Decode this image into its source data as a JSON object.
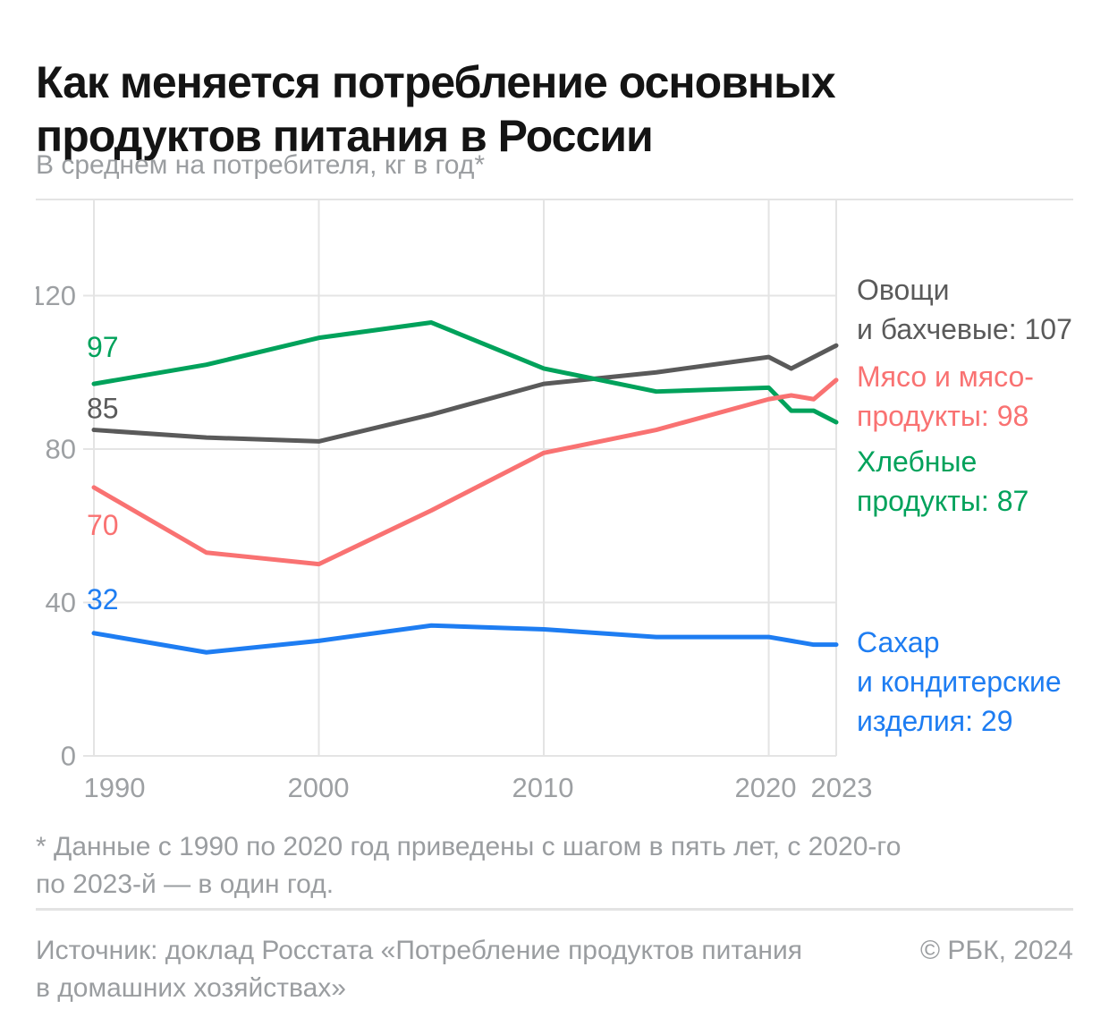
{
  "page": {
    "title": "Как меняется потребление основных продуктов питания в России",
    "subtitle": "В среднем на потребителя, кг в год*",
    "footnote": "* Данные с 1990 по 2020 год приведены с шагом в пять лет, с 2020-го по 2023-й — в один год.",
    "source": "Источник: доклад Росстата «Потребление продуктов питания в домашних хозяйствах»",
    "copyright": "© РБК, 2024"
  },
  "colors": {
    "vegetables": "#5A5A5A",
    "meat": "#F97272",
    "bread": "#00A25B",
    "sugar": "#1E7DF2",
    "grid": "#E4E4E4",
    "axis_text": "#9DA0A3"
  },
  "chart_data": {
    "type": "line",
    "title": "Как меняется потребление основных продуктов питания в России",
    "subtitle": "В среднем на потребителя, кг в год*",
    "x": [
      1990,
      1995,
      2000,
      2005,
      2010,
      2015,
      2020,
      2021,
      2022,
      2023
    ],
    "series": [
      {
        "name": "Овощи и бахчевые",
        "color_key": "vegetables",
        "values": [
          85,
          83,
          82,
          89,
          97,
          100,
          104,
          101,
          104,
          107
        ],
        "start_label": "85",
        "end_value": 107,
        "end_label_lines": [
          "Овощи",
          "и бахчевые: 107"
        ]
      },
      {
        "name": "Мясо и мясопродукты",
        "color_key": "meat",
        "values": [
          70,
          53,
          50,
          64,
          79,
          85,
          93,
          94,
          93,
          98
        ],
        "start_label": "70",
        "end_value": 98,
        "end_label_lines": [
          "Мясо и мясо-",
          "продукты: 98"
        ]
      },
      {
        "name": "Хлебные продукты",
        "color_key": "bread",
        "values": [
          97,
          102,
          109,
          113,
          101,
          95,
          96,
          90,
          90,
          87
        ],
        "start_label": "97",
        "end_value": 87,
        "end_label_lines": [
          "Хлебные",
          "продукты: 87"
        ]
      },
      {
        "name": "Сахар и кондитерские изделия",
        "color_key": "sugar",
        "values": [
          32,
          27,
          30,
          34,
          33,
          31,
          31,
          30,
          29,
          29
        ],
        "start_label": "32",
        "end_value": 29,
        "end_label_lines": [
          "Сахар",
          "и кондитерские",
          "изделия: 29"
        ]
      }
    ],
    "yticks": [
      0,
      40,
      80,
      120
    ],
    "xticks": [
      1990,
      2000,
      2010,
      2020,
      2023
    ],
    "ylim": [
      0,
      145
    ],
    "xlabel": "",
    "ylabel": "",
    "grid": true,
    "legend_position": "right"
  }
}
